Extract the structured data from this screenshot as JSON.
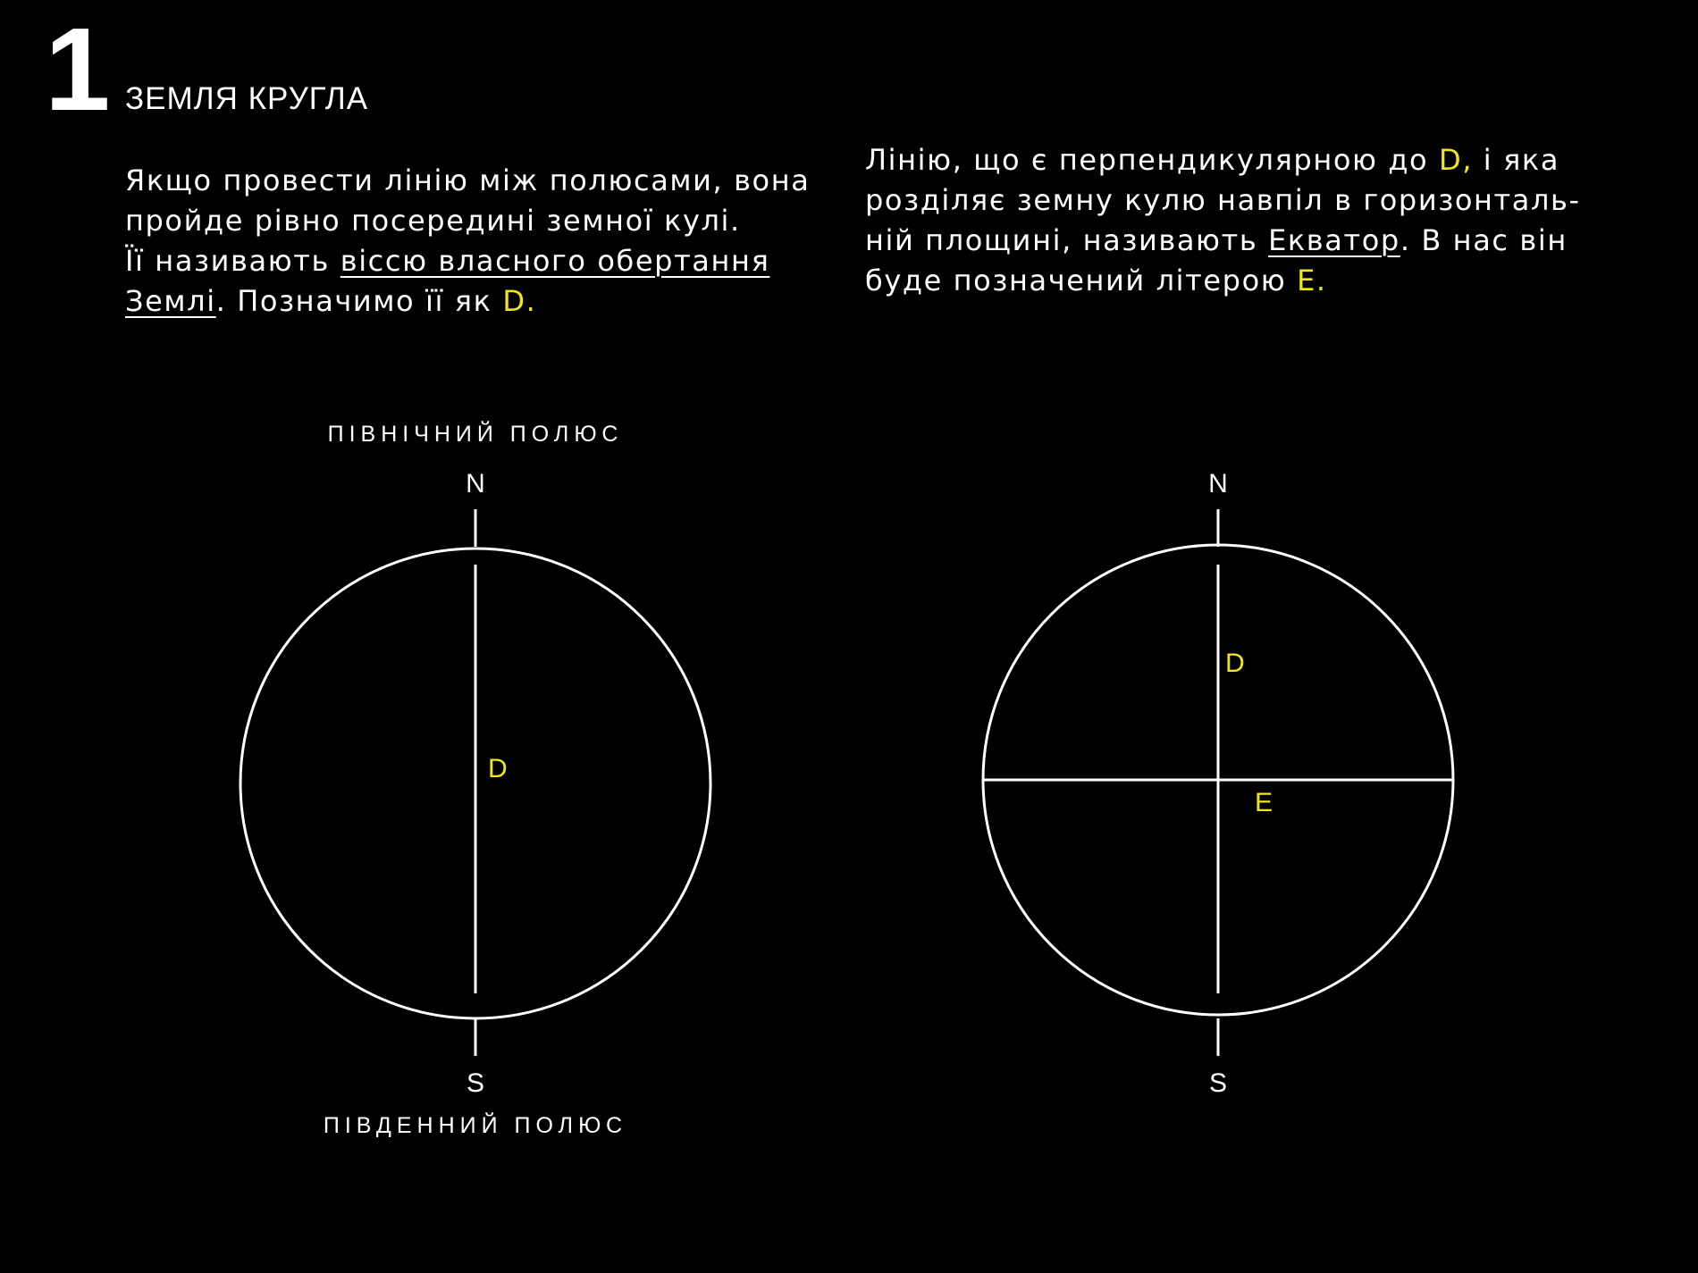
{
  "header": {
    "number": "1",
    "title": "ЗЕМЛЯ КРУГЛА"
  },
  "left_text": {
    "line1": "Якщо провести лінію між полюсами, вона",
    "line2": "пройде рівно посередині земної кулі.",
    "line3_pre": "Її називають ",
    "line3_link": "віссю власного обертання",
    "line4_link": "Землі",
    "line4_mid": ". Позначимо її як ",
    "line4_hl": "D."
  },
  "right_text": {
    "line1_pre": "Лінію, що є перпендикулярною до ",
    "line1_hl": "D,",
    "line1_post": " і яка",
    "line2": "розділяє земну кулю навпіл в горизонталь-",
    "line3_pre": "ній площині, називають ",
    "line3_link": "Екватор",
    "line3_post": ". В нас він",
    "line4_pre": "буде позначений літерою ",
    "line4_hl": "E."
  },
  "diagram_left": {
    "north_pole_label": "ПІВНІЧНИЙ ПОЛЮС",
    "south_pole_label": "ПІВДЕННИЙ ПОЛЮС",
    "north": "N",
    "south": "S",
    "axis_label": "D"
  },
  "diagram_right": {
    "north": "N",
    "south": "S",
    "axis_label": "D",
    "equator_label": "E"
  },
  "colors": {
    "background": "#000000",
    "foreground": "#ffffff",
    "highlight": "#f0e619"
  }
}
